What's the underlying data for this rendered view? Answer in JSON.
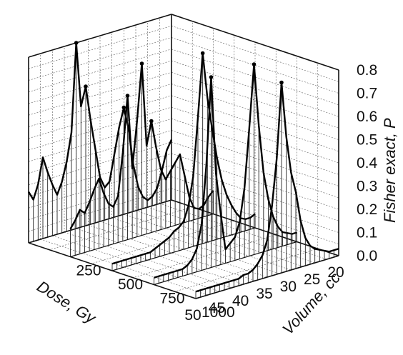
{
  "chart_data": {
    "type": "3d-line",
    "title": "",
    "xlabel": "Dose, Gy",
    "ylabel": "Volume, cc",
    "zlabel": "Fisher exact, P",
    "x_ticks": [
      "20",
      "25",
      "30",
      "35",
      "40",
      "45",
      "50"
    ],
    "y_ticks": [
      "0.0",
      "250",
      "500",
      "750",
      "1000"
    ],
    "z_ticks": [
      "0.0",
      "0.1",
      "0.2",
      "0.3",
      "0.4",
      "0.5",
      "0.6",
      "0.7",
      "0.8"
    ],
    "xlim": [
      20,
      50
    ],
    "ylim": [
      0,
      1000
    ],
    "zlim": [
      0,
      0.8
    ],
    "grid": true,
    "series": [
      {
        "y": 0,
        "points": [
          [
            20,
            0.26
          ],
          [
            21,
            0.22
          ],
          [
            22,
            0.14
          ],
          [
            23,
            0.07
          ],
          [
            24,
            0.04
          ],
          [
            25,
            0.03
          ],
          [
            26,
            0.05
          ],
          [
            27,
            0.1
          ],
          [
            28,
            0.2
          ],
          [
            29,
            0.36
          ],
          [
            30,
            0.46
          ],
          [
            31,
            0.38
          ],
          [
            32,
            0.27
          ],
          [
            33,
            0.16
          ],
          [
            34,
            0.14
          ],
          [
            35,
            0.19
          ],
          [
            36,
            0.32
          ],
          [
            37,
            0.45
          ],
          [
            38,
            0.6
          ],
          [
            39,
            0.52
          ],
          [
            40,
            0.8
          ],
          [
            41,
            0.42
          ],
          [
            42,
            0.3
          ],
          [
            43,
            0.22
          ],
          [
            44,
            0.17
          ],
          [
            45,
            0.22
          ],
          [
            46,
            0.28
          ],
          [
            47,
            0.35
          ],
          [
            48,
            0.24
          ],
          [
            49,
            0.18
          ],
          [
            50,
            0.22
          ]
        ]
      },
      {
        "y": 250,
        "points": [
          [
            20,
            0.1
          ],
          [
            21,
            0.08
          ],
          [
            22,
            0.05
          ],
          [
            23,
            0.04
          ],
          [
            24,
            0.05
          ],
          [
            25,
            0.1
          ],
          [
            26,
            0.2
          ],
          [
            27,
            0.3
          ],
          [
            28,
            0.27
          ],
          [
            29,
            0.24
          ],
          [
            30,
            0.21
          ],
          [
            31,
            0.26
          ],
          [
            32,
            0.36
          ],
          [
            33,
            0.48
          ],
          [
            34,
            0.38
          ],
          [
            35,
            0.74
          ],
          [
            36,
            0.5
          ],
          [
            37,
            0.3
          ],
          [
            38,
            0.62
          ],
          [
            39,
            0.38
          ],
          [
            40,
            0.2
          ],
          [
            41,
            0.16
          ],
          [
            42,
            0.18
          ],
          [
            43,
            0.23
          ],
          [
            44,
            0.3
          ],
          [
            45,
            0.26
          ],
          [
            46,
            0.21
          ],
          [
            47,
            0.17
          ],
          [
            48,
            0.19
          ],
          [
            49,
            0.15
          ],
          [
            50,
            0.12
          ]
        ]
      },
      {
        "y": 500,
        "points": [
          [
            20,
            0.06
          ],
          [
            21,
            0.05
          ],
          [
            22,
            0.05
          ],
          [
            23,
            0.06
          ],
          [
            24,
            0.09
          ],
          [
            25,
            0.13
          ],
          [
            26,
            0.18
          ],
          [
            27,
            0.25
          ],
          [
            28,
            0.35
          ],
          [
            29,
            0.48
          ],
          [
            30,
            0.62
          ],
          [
            31,
            0.82
          ],
          [
            32,
            0.55
          ],
          [
            33,
            0.3
          ],
          [
            34,
            0.18
          ],
          [
            35,
            0.12
          ],
          [
            36,
            0.1
          ],
          [
            37,
            0.09
          ],
          [
            38,
            0.07
          ],
          [
            39,
            0.06
          ],
          [
            40,
            0.05
          ],
          [
            41,
            0.04
          ],
          [
            42,
            0.03
          ],
          [
            43,
            0.03
          ],
          [
            44,
            0.03
          ],
          [
            45,
            0.03
          ],
          [
            46,
            0.03
          ],
          [
            47,
            0.03
          ],
          [
            48,
            0.03
          ],
          [
            49,
            0.03
          ],
          [
            50,
            0.03
          ]
        ]
      },
      {
        "y": 750,
        "points": [
          [
            20,
            0.04
          ],
          [
            21,
            0.04
          ],
          [
            22,
            0.05
          ],
          [
            23,
            0.06
          ],
          [
            24,
            0.09
          ],
          [
            25,
            0.14
          ],
          [
            26,
            0.22
          ],
          [
            27,
            0.34
          ],
          [
            28,
            0.55
          ],
          [
            29,
            0.82
          ],
          [
            30,
            0.55
          ],
          [
            31,
            0.3
          ],
          [
            32,
            0.16
          ],
          [
            33,
            0.1
          ],
          [
            34,
            0.08
          ],
          [
            35,
            0.06
          ],
          [
            36,
            0.22
          ],
          [
            37,
            0.4
          ],
          [
            38,
            0.82
          ],
          [
            39,
            0.45
          ],
          [
            40,
            0.2
          ],
          [
            41,
            0.1
          ],
          [
            42,
            0.06
          ],
          [
            43,
            0.04
          ],
          [
            44,
            0.03
          ],
          [
            45,
            0.03
          ],
          [
            46,
            0.03
          ],
          [
            47,
            0.03
          ],
          [
            48,
            0.03
          ],
          [
            49,
            0.03
          ],
          [
            50,
            0.03
          ]
        ]
      },
      {
        "y": 1000,
        "points": [
          [
            20,
            0.03
          ],
          [
            21,
            0.03
          ],
          [
            22,
            0.03
          ],
          [
            23,
            0.04
          ],
          [
            24,
            0.05
          ],
          [
            25,
            0.06
          ],
          [
            26,
            0.08
          ],
          [
            27,
            0.12
          ],
          [
            28,
            0.2
          ],
          [
            29,
            0.33
          ],
          [
            30,
            0.42
          ],
          [
            31,
            0.58
          ],
          [
            32,
            0.82
          ],
          [
            33,
            0.5
          ],
          [
            34,
            0.3
          ],
          [
            35,
            0.16
          ],
          [
            36,
            0.1
          ],
          [
            37,
            0.07
          ],
          [
            38,
            0.05
          ],
          [
            39,
            0.04
          ],
          [
            40,
            0.04
          ],
          [
            41,
            0.03
          ],
          [
            42,
            0.03
          ],
          [
            43,
            0.03
          ],
          [
            44,
            0.03
          ],
          [
            45,
            0.03
          ],
          [
            46,
            0.03
          ],
          [
            47,
            0.03
          ],
          [
            48,
            0.03
          ],
          [
            49,
            0.03
          ],
          [
            50,
            0.03
          ]
        ]
      }
    ]
  }
}
